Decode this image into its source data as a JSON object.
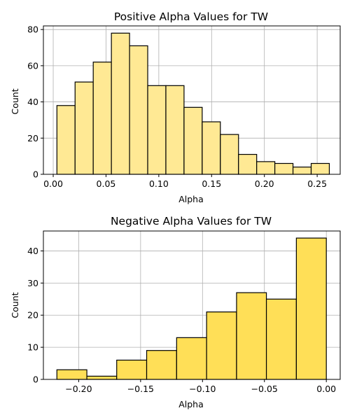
{
  "chart_data": [
    {
      "type": "bar",
      "title": "Positive Alpha Values for TW",
      "xlabel": "Alpha",
      "ylabel": "Count",
      "bar_color": "#ffe994",
      "edge_color": "#000000",
      "grid": true,
      "xlim": [
        -0.0093,
        0.2718
      ],
      "ylim": [
        0,
        82
      ],
      "xticks": [
        0.0,
        0.05,
        0.1,
        0.15,
        0.2,
        0.25
      ],
      "xtick_labels": [
        "0.00",
        "0.05",
        "0.10",
        "0.15",
        "0.20",
        "0.25"
      ],
      "yticks": [
        0,
        20,
        40,
        60,
        80
      ],
      "ytick_labels": [
        "0",
        "20",
        "40",
        "60",
        "80"
      ],
      "bins": [
        {
          "x0": 0.0035,
          "x1": 0.0207,
          "count": 38
        },
        {
          "x0": 0.0207,
          "x1": 0.0379,
          "count": 51
        },
        {
          "x0": 0.0379,
          "x1": 0.0551,
          "count": 62
        },
        {
          "x0": 0.0551,
          "x1": 0.0723,
          "count": 78
        },
        {
          "x0": 0.0723,
          "x1": 0.0895,
          "count": 71
        },
        {
          "x0": 0.0895,
          "x1": 0.1067,
          "count": 49
        },
        {
          "x0": 0.1067,
          "x1": 0.1239,
          "count": 49
        },
        {
          "x0": 0.1239,
          "x1": 0.1411,
          "count": 37
        },
        {
          "x0": 0.1411,
          "x1": 0.1583,
          "count": 29
        },
        {
          "x0": 0.1583,
          "x1": 0.1755,
          "count": 22
        },
        {
          "x0": 0.1755,
          "x1": 0.1927,
          "count": 11
        },
        {
          "x0": 0.1927,
          "x1": 0.2099,
          "count": 7
        },
        {
          "x0": 0.2099,
          "x1": 0.2271,
          "count": 6
        },
        {
          "x0": 0.2271,
          "x1": 0.2443,
          "count": 4
        },
        {
          "x0": 0.2443,
          "x1": 0.2615,
          "count": 6
        }
      ]
    },
    {
      "type": "bar",
      "title": "Negative Alpha Values for TW",
      "xlabel": "Alpha",
      "ylabel": "Count",
      "bar_color": "#ffdf57",
      "edge_color": "#000000",
      "grid": true,
      "xlim": [
        -0.2285,
        0.0112
      ],
      "ylim": [
        0,
        46.2
      ],
      "xticks": [
        -0.2,
        -0.15,
        -0.1,
        -0.05,
        0.0
      ],
      "xtick_labels": [
        "−0.20",
        "−0.15",
        "−0.10",
        "−0.05",
        "0.00"
      ],
      "yticks": [
        0,
        10,
        20,
        30,
        40
      ],
      "ytick_labels": [
        "0",
        "10",
        "20",
        "30",
        "40"
      ],
      "bins": [
        {
          "x0": -0.2176,
          "x1": -0.1934,
          "count": 3
        },
        {
          "x0": -0.1934,
          "x1": -0.1693,
          "count": 1
        },
        {
          "x0": -0.1693,
          "x1": -0.1451,
          "count": 6
        },
        {
          "x0": -0.1451,
          "x1": -0.1209,
          "count": 9
        },
        {
          "x0": -0.1209,
          "x1": -0.0967,
          "count": 13
        },
        {
          "x0": -0.0967,
          "x1": -0.0725,
          "count": 21
        },
        {
          "x0": -0.0725,
          "x1": -0.0484,
          "count": 27
        },
        {
          "x0": -0.0484,
          "x1": -0.0242,
          "count": 25
        },
        {
          "x0": -0.0242,
          "x1": 0.0,
          "count": 44
        }
      ]
    }
  ]
}
